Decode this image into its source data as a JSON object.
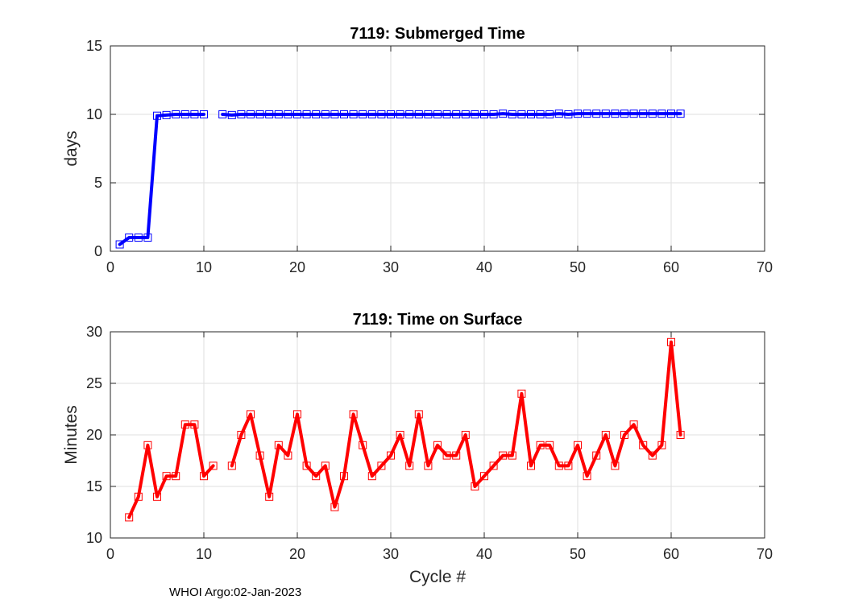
{
  "footer_text": "WHOI Argo:02-Jan-2023",
  "chart_data": [
    {
      "type": "line",
      "title": "7119: Submerged Time",
      "xlabel": "",
      "ylabel": "days",
      "xlim": [
        0,
        70
      ],
      "ylim": [
        0,
        15
      ],
      "xticks": [
        0,
        10,
        20,
        30,
        40,
        50,
        60,
        70
      ],
      "yticks": [
        0,
        5,
        10,
        15
      ],
      "grid": true,
      "color": "#0000ff",
      "series": [
        {
          "name": "Submerged Time",
          "x": [
            1,
            2,
            3,
            4,
            5,
            6,
            7,
            8,
            9,
            10,
            11,
            12,
            13,
            14,
            15,
            16,
            17,
            18,
            19,
            20,
            21,
            22,
            23,
            24,
            25,
            26,
            27,
            28,
            29,
            30,
            31,
            32,
            33,
            34,
            35,
            36,
            37,
            38,
            39,
            40,
            41,
            42,
            43,
            44,
            45,
            46,
            47,
            48,
            49,
            50,
            51,
            52,
            53,
            54,
            55,
            56,
            57,
            58,
            59,
            60,
            61
          ],
          "values": [
            0.5,
            1.0,
            1.0,
            1.0,
            9.9,
            9.95,
            10.0,
            10.0,
            10.0,
            10.0,
            null,
            10.0,
            9.95,
            10.0,
            10.0,
            10.0,
            10.0,
            10.0,
            10.0,
            10.0,
            10.0,
            10.0,
            10.0,
            10.0,
            10.0,
            10.0,
            10.0,
            10.0,
            10.0,
            10.0,
            10.0,
            10.0,
            10.0,
            10.0,
            10.0,
            10.0,
            10.0,
            10.0,
            10.0,
            10.0,
            10.0,
            10.05,
            10.0,
            10.0,
            10.0,
            10.0,
            10.0,
            10.05,
            10.0,
            10.05,
            10.05,
            10.05,
            10.05,
            10.05,
            10.05,
            10.05,
            10.05,
            10.05,
            10.05,
            10.05,
            10.05
          ]
        }
      ]
    },
    {
      "type": "line",
      "title": "7119: Time on Surface",
      "xlabel": "Cycle #",
      "ylabel": "Minutes",
      "xlim": [
        0,
        70
      ],
      "ylim": [
        10,
        30
      ],
      "xticks": [
        0,
        10,
        20,
        30,
        40,
        50,
        60,
        70
      ],
      "yticks": [
        10,
        15,
        20,
        25,
        30
      ],
      "grid": true,
      "color": "#ff0000",
      "series": [
        {
          "name": "Time on Surface",
          "x": [
            2,
            3,
            4,
            5,
            6,
            7,
            8,
            9,
            10,
            11,
            12,
            13,
            14,
            15,
            16,
            17,
            18,
            19,
            20,
            21,
            22,
            23,
            24,
            25,
            26,
            27,
            28,
            29,
            30,
            31,
            32,
            33,
            34,
            35,
            36,
            37,
            38,
            39,
            40,
            41,
            42,
            43,
            44,
            45,
            46,
            47,
            48,
            49,
            50,
            51,
            52,
            53,
            54,
            55,
            56,
            57,
            58,
            59,
            60,
            61
          ],
          "values": [
            12,
            14,
            19,
            14,
            16,
            16,
            21,
            21,
            16,
            17,
            null,
            17,
            20,
            22,
            18,
            14,
            19,
            18,
            22,
            17,
            16,
            17,
            13,
            16,
            22,
            19,
            16,
            17,
            18,
            20,
            17,
            22,
            17,
            19,
            18,
            18,
            20,
            15,
            16,
            17,
            18,
            18,
            24,
            17,
            19,
            19,
            17,
            17,
            19,
            16,
            18,
            20,
            17,
            20,
            21,
            19,
            18,
            19,
            29,
            20
          ]
        }
      ]
    }
  ]
}
